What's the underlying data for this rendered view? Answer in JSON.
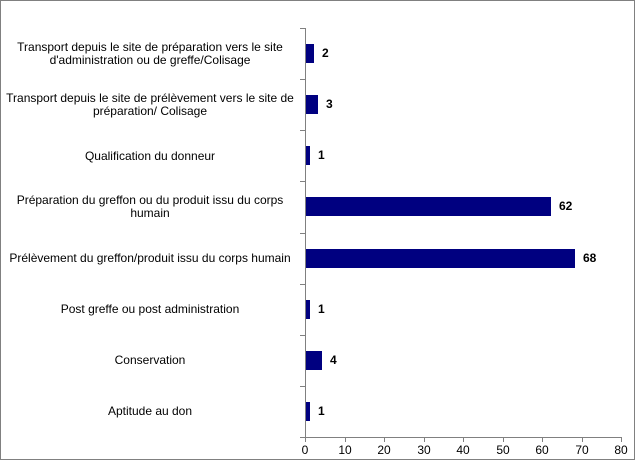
{
  "chart_data": {
    "type": "bar",
    "orientation": "horizontal",
    "title": "",
    "xlabel": "",
    "ylabel": "",
    "xlim": [
      0,
      80
    ],
    "xticks": [
      0,
      10,
      20,
      30,
      40,
      50,
      60,
      70,
      80
    ],
    "grid": false,
    "legend": null,
    "bar_color": "#000080",
    "data_labels": true,
    "categories": [
      "Transport depuis le site de préparation vers le site d'administration ou de greffe/Colisage",
      "Transport depuis le site de prélèvement  vers le site de préparation/ Colisage",
      "Qualification du donneur",
      "Préparation du greffon ou du produit issu du corps humain",
      "Prélèvement du greffon/produit issu du corps humain",
      "Post greffe ou post administration",
      "Conservation",
      "Aptitude au don"
    ],
    "values": [
      2,
      3,
      1,
      62,
      68,
      1,
      4,
      1
    ]
  },
  "labels": {
    "cat0": [
      "Transport depuis le site de préparation vers le site",
      "d'administration ou de greffe/Colisage"
    ],
    "cat1": [
      "Transport depuis le site de prélèvement  vers le site de",
      "préparation/ Colisage"
    ],
    "cat2": [
      "Qualification du donneur"
    ],
    "cat3": [
      "Préparation du greffon ou du produit issu du corps",
      "humain"
    ],
    "cat4": [
      "Prélèvement du greffon/produit issu du corps humain"
    ],
    "cat5": [
      "Post greffe ou post administration"
    ],
    "cat6": [
      "Conservation"
    ],
    "cat7": [
      "Aptitude au don"
    ]
  },
  "value_labels": [
    "2",
    "3",
    "1",
    "62",
    "68",
    "1",
    "4",
    "1"
  ],
  "x_tick_labels": [
    "0",
    "10",
    "20",
    "30",
    "40",
    "50",
    "60",
    "70",
    "80"
  ]
}
